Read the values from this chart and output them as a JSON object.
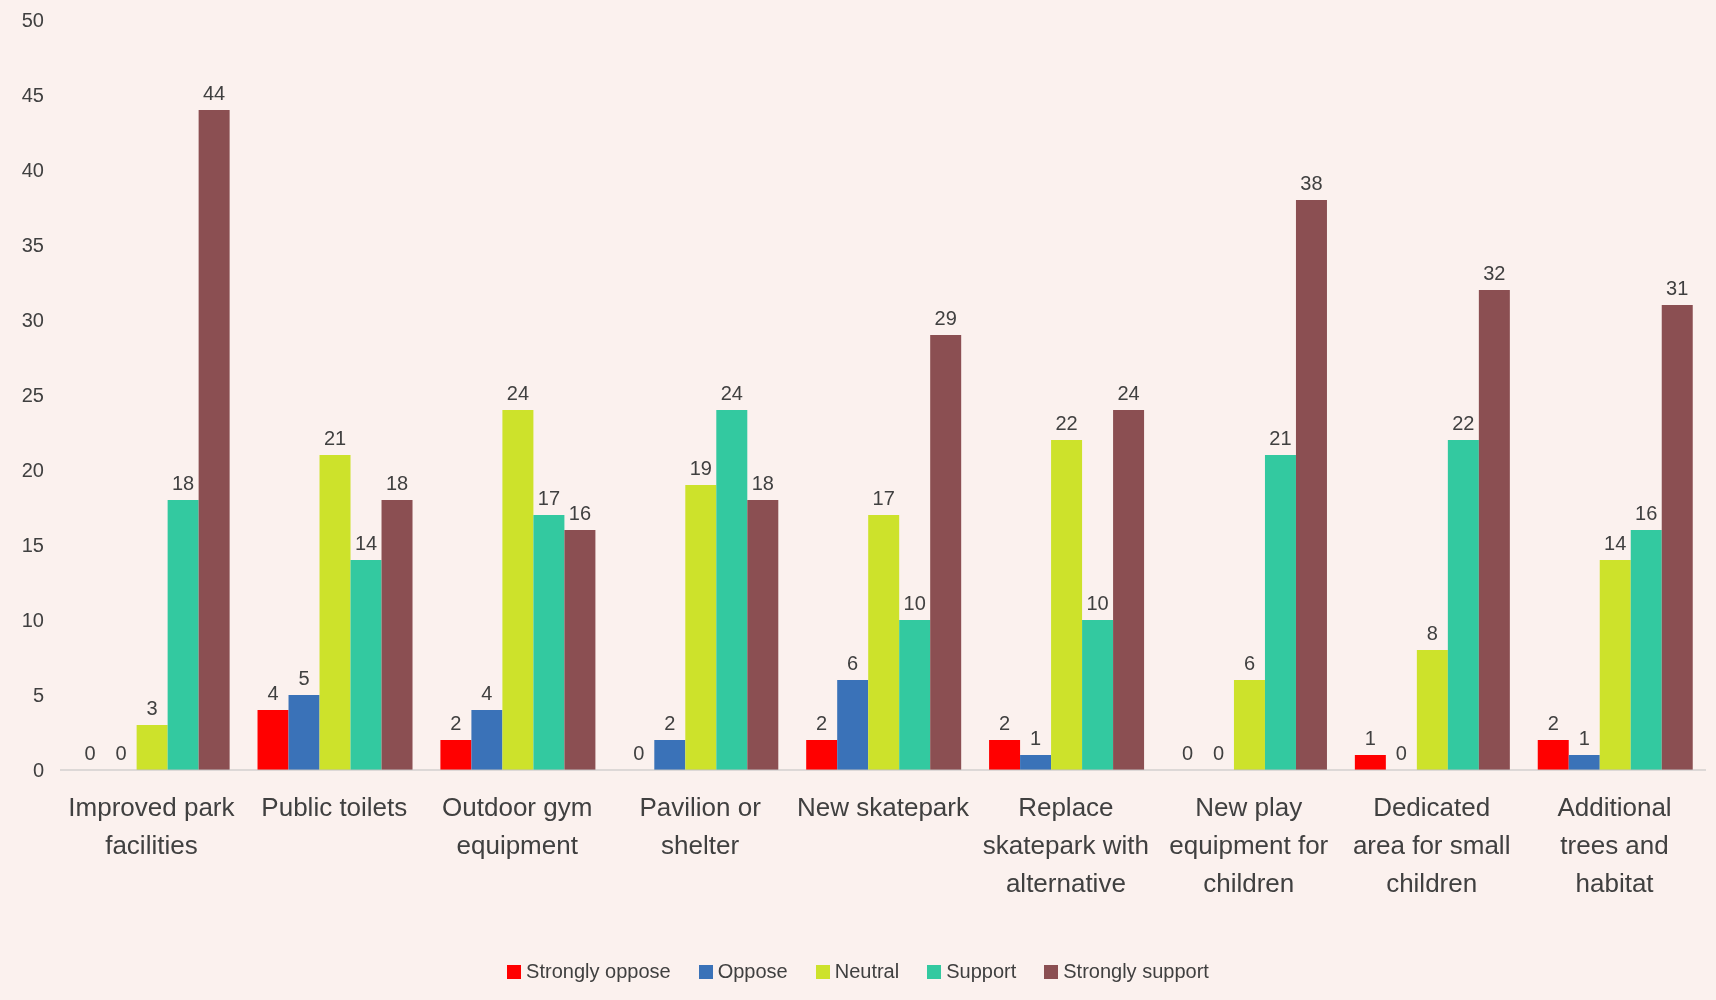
{
  "chart_data": {
    "type": "bar",
    "categories": [
      "Improved park facilities",
      "Public toilets",
      "Outdoor gym equipment",
      "Pavilion or shelter",
      "New skatepark",
      "Replace skatepark with alternative",
      "New play equipment for children",
      "Dedicated area for small children",
      "Additional trees and habitat"
    ],
    "series": [
      {
        "name": "Strongly oppose",
        "color": "#ff0000",
        "values": [
          0,
          4,
          2,
          0,
          2,
          2,
          0,
          1,
          2
        ]
      },
      {
        "name": "Oppose",
        "color": "#3a72b8",
        "values": [
          0,
          5,
          4,
          2,
          6,
          1,
          0,
          0,
          1
        ]
      },
      {
        "name": "Neutral",
        "color": "#cde22b",
        "values": [
          3,
          21,
          24,
          19,
          17,
          22,
          6,
          8,
          14
        ]
      },
      {
        "name": "Support",
        "color": "#33c9a0",
        "values": [
          18,
          14,
          17,
          24,
          10,
          10,
          21,
          22,
          16
        ]
      },
      {
        "name": "Strongly support",
        "color": "#8b4f52",
        "values": [
          44,
          18,
          16,
          18,
          29,
          24,
          38,
          32,
          31
        ]
      }
    ],
    "ylim": [
      0,
      50
    ],
    "yticks": [
      0,
      5,
      10,
      15,
      20,
      25,
      30,
      35,
      40,
      45,
      50
    ],
    "grid": false,
    "legend": "bottom",
    "data_labels": true
  }
}
